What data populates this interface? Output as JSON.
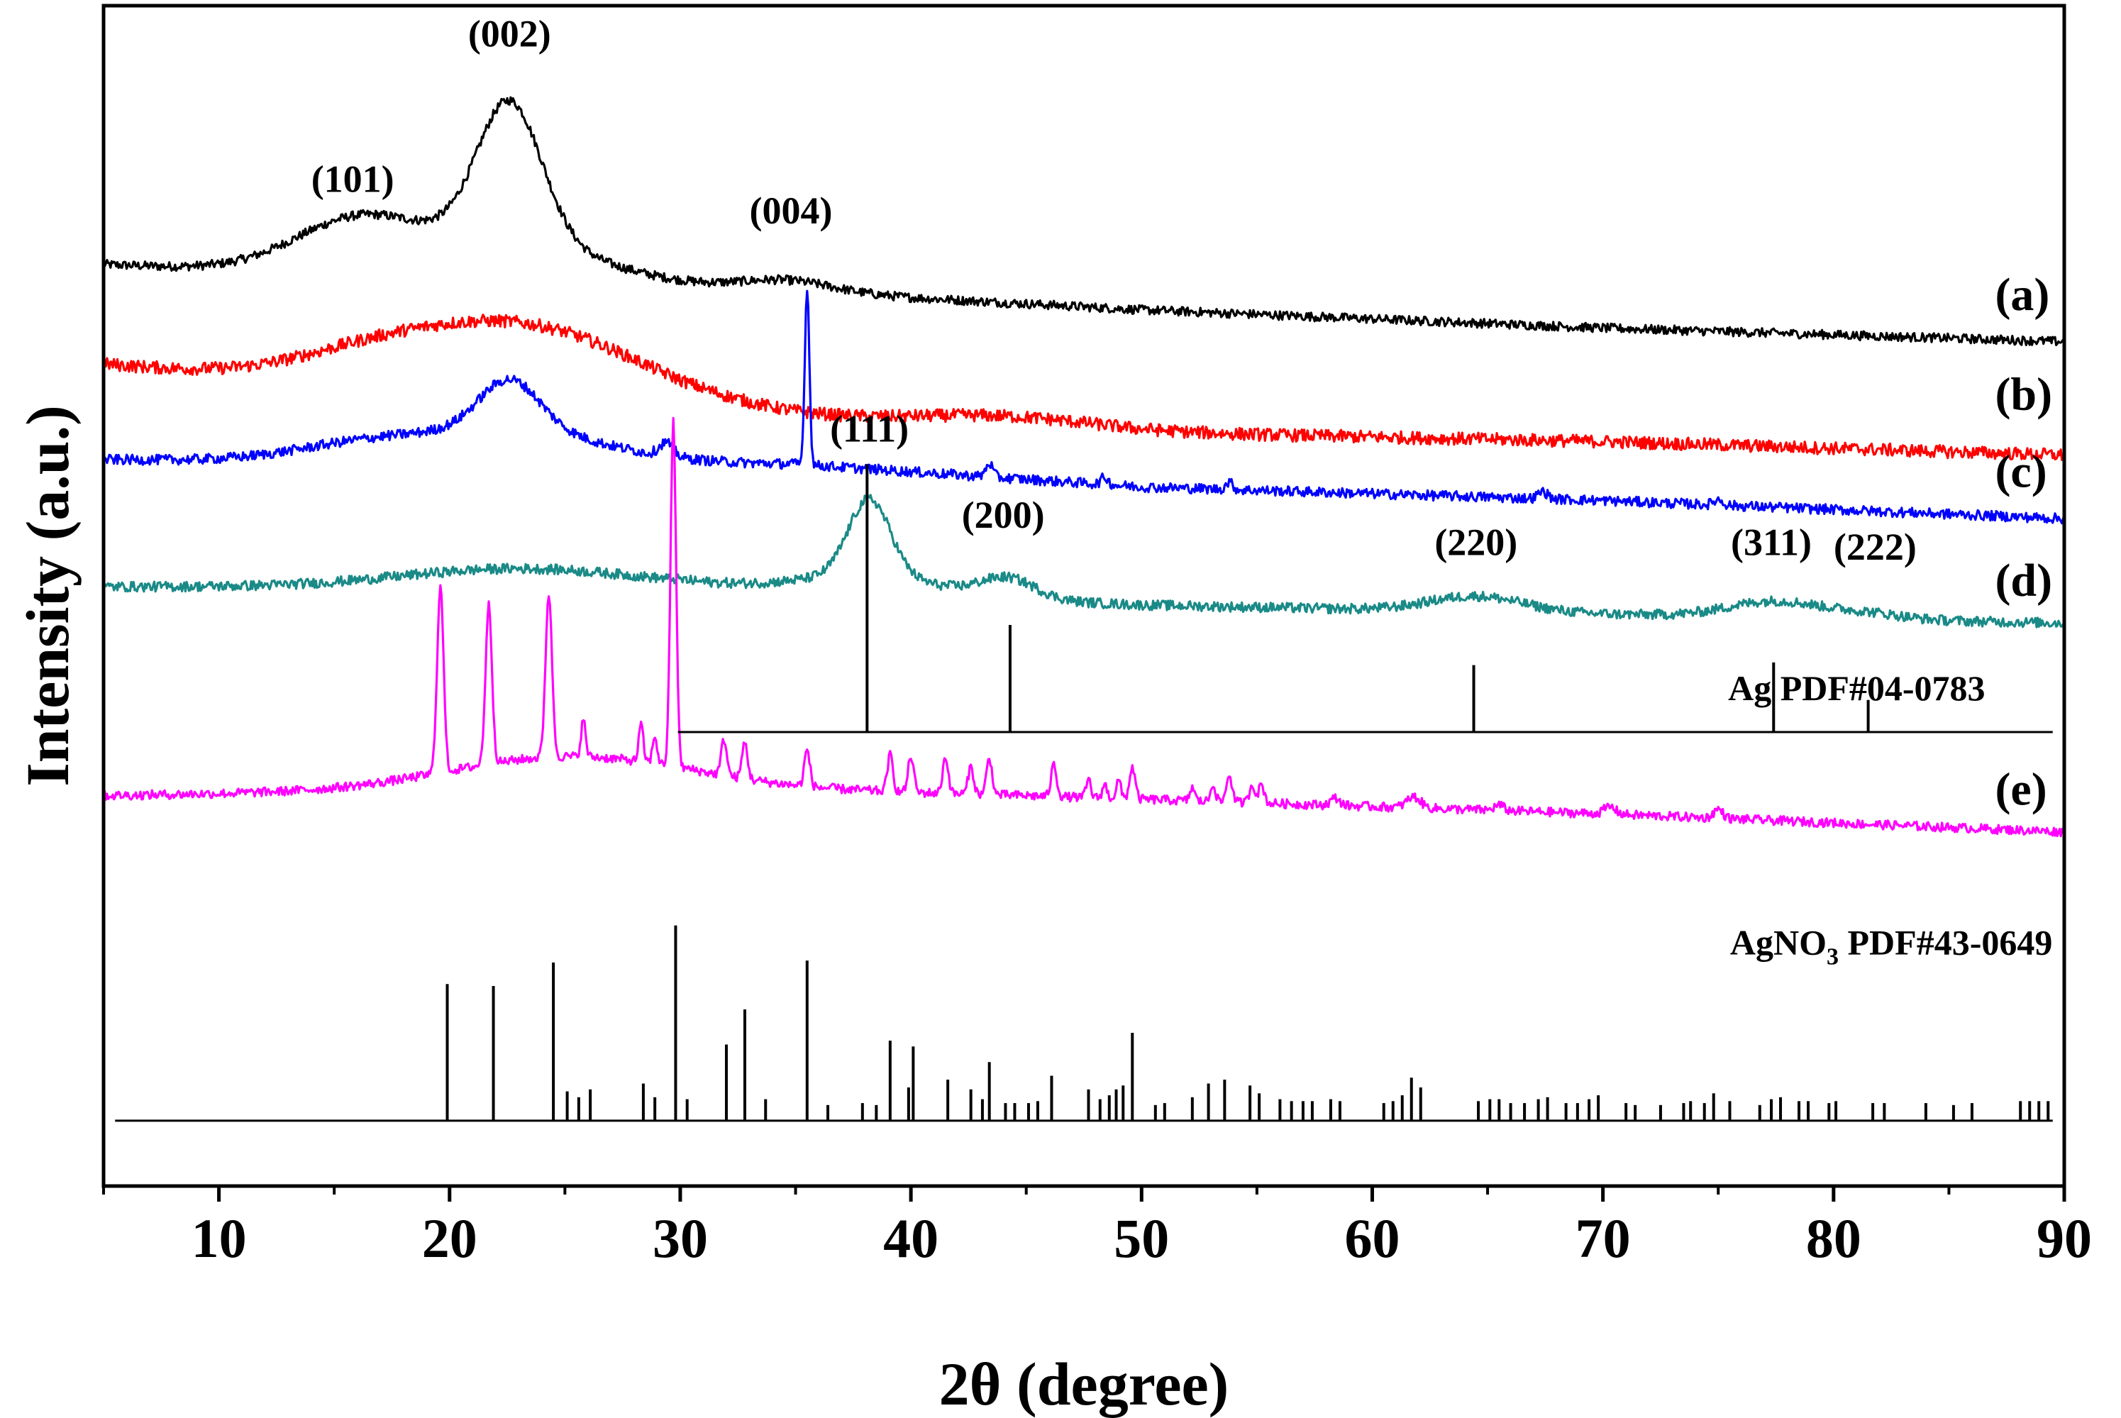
{
  "chart_data": {
    "type": "line",
    "xlabel": "2θ (degree)",
    "ylabel": "Intensity (a.u.)",
    "xlim": [
      5,
      90
    ],
    "xticks": [
      10,
      20,
      30,
      40,
      50,
      60,
      70,
      80,
      90
    ],
    "yticks": [],
    "grid": false,
    "series": [
      {
        "name": "(a)",
        "color": "#000000",
        "noise": 0.05,
        "baseline": [
          [
            5,
            10.15
          ],
          [
            20,
            10.0
          ],
          [
            35,
            9.85
          ],
          [
            50,
            9.65
          ],
          [
            70,
            9.45
          ],
          [
            90,
            9.3
          ]
        ],
        "peaks": [
          [
            16,
            0.55,
            2.8
          ],
          [
            22.6,
            1.55,
            1.4
          ],
          [
            22.6,
            0.4,
            4.0
          ],
          [
            34.6,
            0.12,
            2.0
          ]
        ]
      },
      {
        "name": "(b)",
        "color": "#ff0000",
        "noise": 0.07,
        "baseline": [
          [
            5,
            9.05
          ],
          [
            30,
            8.5
          ],
          [
            50,
            8.3
          ],
          [
            70,
            8.2
          ],
          [
            90,
            8.05
          ]
        ],
        "peaks": [
          [
            23,
            0.85,
            5.5
          ],
          [
            16,
            0.12,
            3.0
          ],
          [
            44,
            0.12,
            4.0
          ]
        ]
      },
      {
        "name": "(c)",
        "color": "#0000ff",
        "noise": 0.055,
        "baseline": [
          [
            5,
            8.0
          ],
          [
            35,
            7.95
          ],
          [
            50,
            7.7
          ],
          [
            70,
            7.55
          ],
          [
            90,
            7.35
          ]
        ],
        "peaks": [
          [
            22.6,
            0.55,
            1.3
          ],
          [
            22.6,
            0.35,
            4.0
          ],
          [
            16,
            0.15,
            3.0
          ],
          [
            29.4,
            0.15,
            0.3
          ],
          [
            35.5,
            1.95,
            0.1
          ],
          [
            43.4,
            0.15,
            0.15
          ],
          [
            48.4,
            0.08,
            0.15
          ],
          [
            53.8,
            0.08,
            0.15
          ],
          [
            67.4,
            0.08,
            0.2
          ],
          [
            75,
            0.06,
            0.2
          ]
        ]
      },
      {
        "name": "(d)",
        "color": "#1a8a87",
        "noise": 0.055,
        "baseline": [
          [
            5,
            6.6
          ],
          [
            30,
            6.6
          ],
          [
            50,
            6.4
          ],
          [
            90,
            6.2
          ]
        ],
        "peaks": [
          [
            23,
            0.2,
            5.0
          ],
          [
            38.2,
            0.85,
            0.9
          ],
          [
            38.2,
            0.2,
            3.0
          ],
          [
            44.2,
            0.22,
            1.2
          ],
          [
            64.5,
            0.17,
            2.0
          ],
          [
            77.5,
            0.18,
            2.0
          ],
          [
            81.5,
            0.06,
            1.5
          ]
        ]
      },
      {
        "name": "(e)",
        "color": "#ff00ff",
        "noise": 0.05,
        "baseline": [
          [
            5,
            4.3
          ],
          [
            30,
            4.4
          ],
          [
            45,
            4.3
          ],
          [
            70,
            4.1
          ],
          [
            90,
            3.9
          ]
        ],
        "peaks": [
          [
            25,
            0.35,
            5.0
          ],
          [
            19.6,
            2.05,
            0.14
          ],
          [
            21.7,
            1.75,
            0.14
          ],
          [
            24.3,
            1.8,
            0.14
          ],
          [
            25.8,
            0.4,
            0.1
          ],
          [
            28.3,
            0.4,
            0.1
          ],
          [
            28.9,
            0.3,
            0.1
          ],
          [
            29.7,
            3.8,
            0.12
          ],
          [
            31.9,
            0.4,
            0.12
          ],
          [
            32.8,
            0.4,
            0.12
          ],
          [
            35.5,
            0.4,
            0.12
          ],
          [
            39.1,
            0.4,
            0.12
          ],
          [
            40,
            0.4,
            0.12
          ],
          [
            41.5,
            0.4,
            0.12
          ],
          [
            42.6,
            0.3,
            0.12
          ],
          [
            43.4,
            0.4,
            0.12
          ],
          [
            46.2,
            0.35,
            0.12
          ],
          [
            47.7,
            0.2,
            0.1
          ],
          [
            48.4,
            0.15,
            0.1
          ],
          [
            49,
            0.2,
            0.1
          ],
          [
            49.6,
            0.35,
            0.12
          ],
          [
            52.2,
            0.15,
            0.1
          ],
          [
            53.1,
            0.2,
            0.1
          ],
          [
            53.8,
            0.3,
            0.12
          ],
          [
            54.8,
            0.2,
            0.12
          ],
          [
            55.2,
            0.2,
            0.12
          ],
          [
            58.4,
            0.08,
            0.2
          ],
          [
            61.8,
            0.12,
            0.3
          ],
          [
            65.5,
            0.06,
            0.2
          ],
          [
            70.3,
            0.08,
            0.25
          ],
          [
            75,
            0.1,
            0.2
          ]
        ]
      }
    ],
    "reference_patterns": [
      {
        "name": "Ag PDF#04-0783",
        "x_range": [
          29.9,
          89.5
        ],
        "lines": [
          [
            38.1,
            100
          ],
          [
            44.3,
            40
          ],
          [
            64.4,
            25
          ],
          [
            77.4,
            26
          ],
          [
            81.5,
            12
          ]
        ]
      },
      {
        "name": "AgNO3 PDF#43-0649",
        "x_range": [
          5.5,
          89.5
        ],
        "lines": [
          [
            19.9,
            70
          ],
          [
            21.9,
            69
          ],
          [
            24.5,
            81
          ],
          [
            25.1,
            15
          ],
          [
            25.6,
            12
          ],
          [
            26.1,
            16
          ],
          [
            28.4,
            19
          ],
          [
            28.9,
            12
          ],
          [
            29.8,
            100
          ],
          [
            30.3,
            11
          ],
          [
            32,
            39
          ],
          [
            32.8,
            57
          ],
          [
            33.7,
            11
          ],
          [
            35.5,
            82
          ],
          [
            36.4,
            8
          ],
          [
            37.9,
            9
          ],
          [
            38.5,
            8
          ],
          [
            39.1,
            41
          ],
          [
            39.9,
            17
          ],
          [
            40.1,
            38
          ],
          [
            41.6,
            21
          ],
          [
            42.6,
            16
          ],
          [
            43.1,
            11
          ],
          [
            43.4,
            30
          ],
          [
            44.1,
            9
          ],
          [
            44.5,
            9
          ],
          [
            45.1,
            9
          ],
          [
            45.5,
            10
          ],
          [
            46.1,
            23
          ],
          [
            47.7,
            16
          ],
          [
            48.2,
            11
          ],
          [
            48.6,
            13
          ],
          [
            48.9,
            16
          ],
          [
            49.2,
            18
          ],
          [
            49.6,
            45
          ],
          [
            50.6,
            8
          ],
          [
            51,
            9
          ],
          [
            52.2,
            12
          ],
          [
            52.9,
            19
          ],
          [
            53.6,
            21
          ],
          [
            54.7,
            18
          ],
          [
            55.1,
            14
          ],
          [
            56,
            11
          ],
          [
            56.5,
            10
          ],
          [
            57,
            10
          ],
          [
            57.4,
            10
          ],
          [
            58.2,
            11
          ],
          [
            58.6,
            10
          ],
          [
            60.5,
            9
          ],
          [
            60.9,
            10
          ],
          [
            61.3,
            13
          ],
          [
            61.7,
            22
          ],
          [
            62.1,
            17
          ],
          [
            64.6,
            10
          ],
          [
            65.1,
            11
          ],
          [
            65.5,
            11
          ],
          [
            66,
            9
          ],
          [
            66.6,
            9
          ],
          [
            67.2,
            11
          ],
          [
            67.6,
            12
          ],
          [
            68.4,
            9
          ],
          [
            68.9,
            9
          ],
          [
            69.4,
            11
          ],
          [
            69.8,
            13
          ],
          [
            71,
            9
          ],
          [
            71.4,
            8
          ],
          [
            72.5,
            8
          ],
          [
            73.5,
            9
          ],
          [
            73.8,
            10
          ],
          [
            74.4,
            9
          ],
          [
            74.8,
            14
          ],
          [
            75.5,
            10
          ],
          [
            76.8,
            8
          ],
          [
            77.3,
            11
          ],
          [
            77.7,
            12
          ],
          [
            78.5,
            10
          ],
          [
            78.9,
            10
          ],
          [
            79.8,
            9
          ],
          [
            80.1,
            10
          ],
          [
            81.7,
            9
          ],
          [
            82.2,
            9
          ],
          [
            84,
            9
          ],
          [
            85.2,
            8
          ],
          [
            86,
            9
          ],
          [
            88.1,
            10
          ],
          [
            88.5,
            10
          ],
          [
            88.9,
            10
          ],
          [
            89.3,
            10
          ]
        ]
      }
    ],
    "peak_annotations": [
      {
        "text": "(101)",
        "x": 15.8,
        "y": 10.95
      },
      {
        "text": "(002)",
        "x": 22.6,
        "y": 12.55
      },
      {
        "text": "(004)",
        "x": 34.8,
        "y": 10.6
      },
      {
        "text": "(111)",
        "x": 38.2,
        "y": 8.2
      },
      {
        "text": "(200)",
        "x": 44.0,
        "y": 7.25
      },
      {
        "text": "(220)",
        "x": 64.5,
        "y": 6.95
      },
      {
        "text": "(311)",
        "x": 77.3,
        "y": 6.95
      },
      {
        "text": "(222)",
        "x": 81.8,
        "y": 6.9
      }
    ],
    "curve_labels": [
      {
        "text": "(a)",
        "x": 87.0,
        "y": 9.65
      },
      {
        "text": "(b)",
        "x": 87.0,
        "y": 8.55
      },
      {
        "text": "(c)",
        "x": 87.0,
        "y": 7.7
      },
      {
        "text": "(d)",
        "x": 87.0,
        "y": 6.5
      },
      {
        "text": "(e)",
        "x": 87.0,
        "y": 4.2
      }
    ],
    "reference_labels": [
      {
        "main": "Ag PDF#04-0783",
        "x": 81.0,
        "y": 5.35
      },
      {
        "main": "AgNO",
        "sub": "3",
        "rest": " PDF#43-0649",
        "x": 82.5,
        "y": 2.55
      }
    ],
    "colors": {
      "axis": "#000000",
      "ref_lines": "#000000"
    }
  }
}
